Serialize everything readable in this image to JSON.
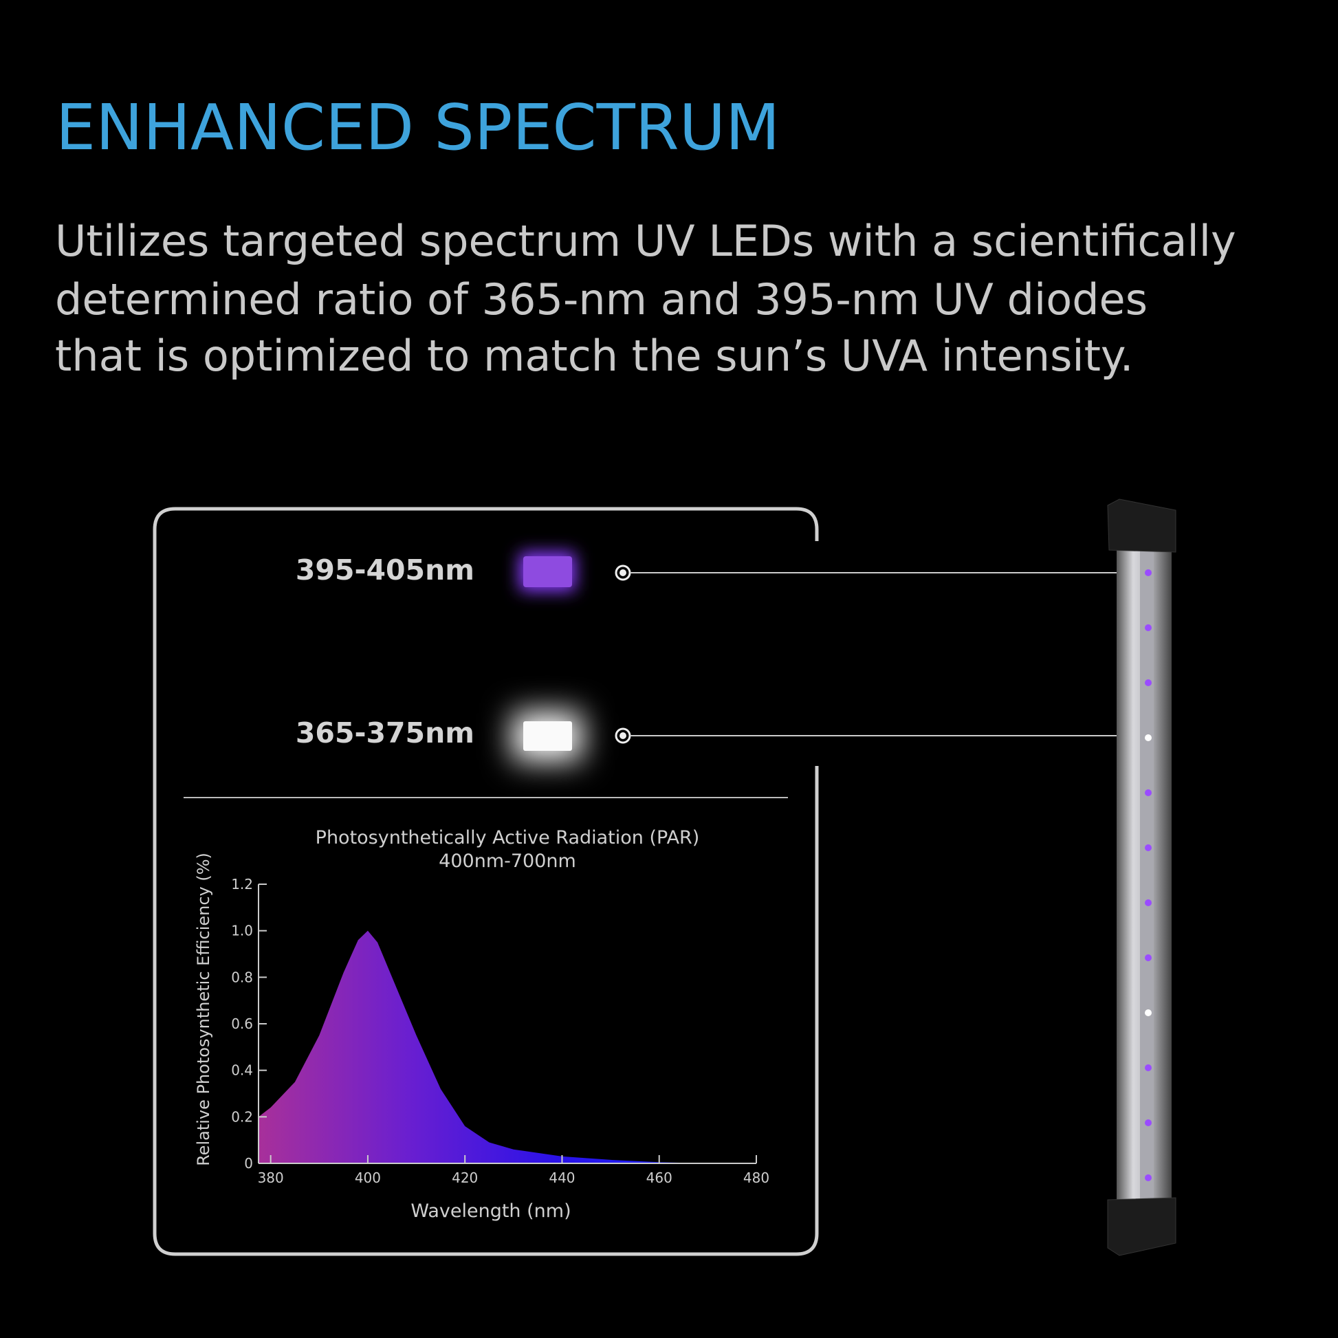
{
  "header": {
    "title": "ENHANCED SPECTRUM",
    "body": [
      "Utilizes targeted spectrum UV LEDs with a scientifically",
      "determined ratio of 365-nm and 395-nm UV diodes",
      "that is optimized to match the sun’s UVA intensity."
    ]
  },
  "callouts": [
    {
      "label": "395-405nm"
    },
    {
      "label": "365-375nm"
    }
  ],
  "chart_data": {
    "type": "area",
    "title": "Photosynthetically Active Radiation (PAR)",
    "subtitle": "400nm-700nm",
    "x_label": "Wavelength (nm)",
    "y_label": "Relative Photosynthetic Efficiency (%)",
    "x": [
      377.5,
      380,
      385,
      390,
      395,
      398,
      400,
      402,
      405,
      410,
      415,
      420,
      425,
      430,
      440,
      450,
      460,
      470
    ],
    "values": [
      0.2,
      0.24,
      0.35,
      0.55,
      0.82,
      0.96,
      1.0,
      0.95,
      0.8,
      0.55,
      0.32,
      0.16,
      0.09,
      0.06,
      0.03,
      0.015,
      0.005,
      0
    ],
    "xlim": [
      377.5,
      480
    ],
    "xticks": [
      380,
      400,
      420,
      440,
      460,
      480
    ],
    "ylim": [
      0,
      1.2
    ],
    "yticks": [
      0,
      0.2,
      0.4,
      0.6,
      0.8,
      {
        "value": 1,
        "label": "1.0"
      },
      1.2
    ],
    "gradient": [
      "#a8309a",
      "#6a1fd0",
      "#2a12e8",
      "#1a28ff"
    ]
  }
}
